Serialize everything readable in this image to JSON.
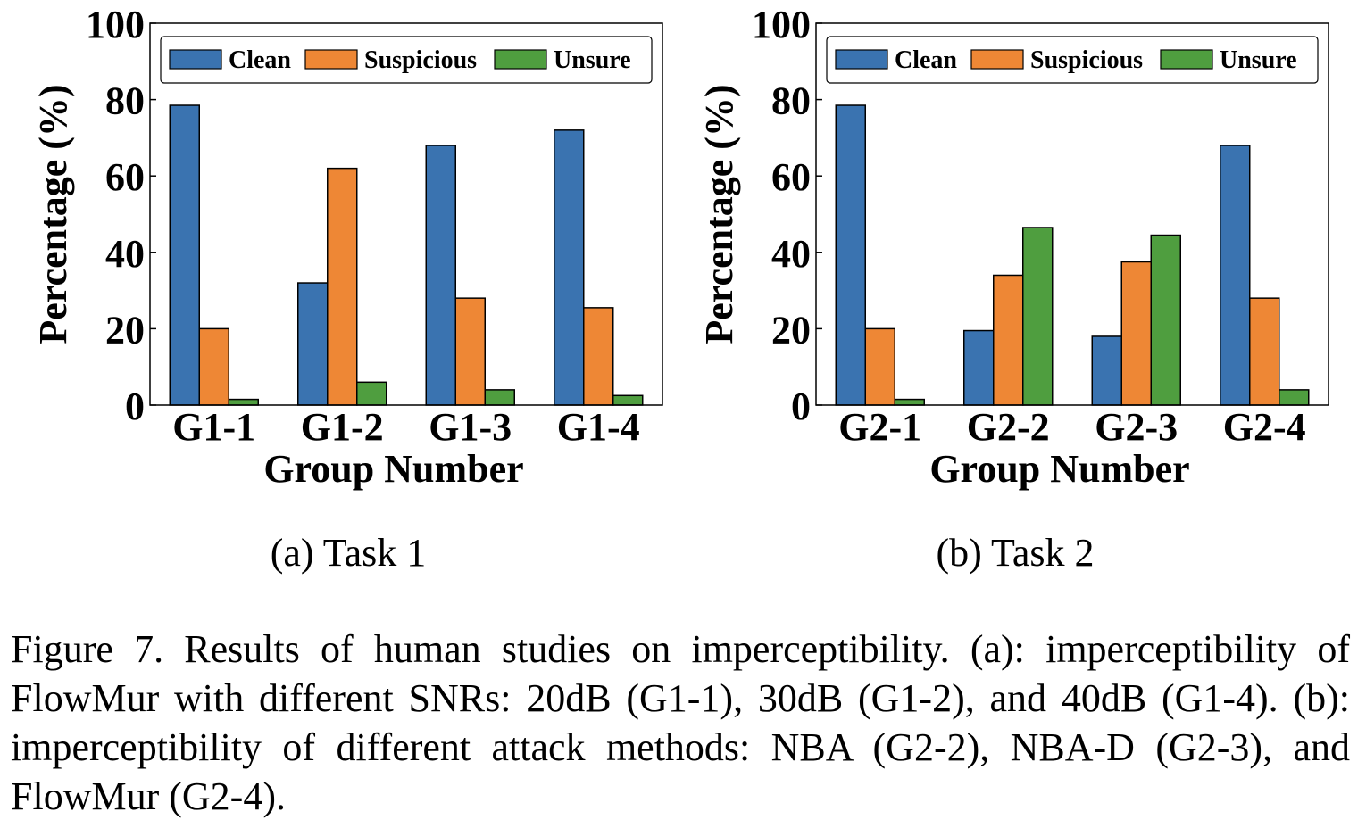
{
  "chart_data": [
    {
      "type": "bar",
      "title": "",
      "xlabel": "Group Number",
      "ylabel": "Percentage (%)",
      "ylim": [
        0,
        100
      ],
      "yticks": [
        "0",
        "20",
        "40",
        "60",
        "80",
        "100"
      ],
      "categories": [
        "G1-1",
        "G1-2",
        "G1-3",
        "G1-4"
      ],
      "legend_position": "top",
      "series": [
        {
          "name": "Clean",
          "color": "#3A73B0",
          "values": [
            78.5,
            32,
            68,
            72
          ]
        },
        {
          "name": "Suspicious",
          "color": "#EE8735",
          "values": [
            20,
            62,
            28,
            25.5
          ]
        },
        {
          "name": "Unsure",
          "color": "#4F9E3F",
          "values": [
            1.5,
            6,
            4,
            2.5
          ]
        }
      ],
      "subcaption": "(a)  Task  1"
    },
    {
      "type": "bar",
      "title": "",
      "xlabel": "Group Number",
      "ylabel": "Percentage (%)",
      "ylim": [
        0,
        100
      ],
      "yticks": [
        "0",
        "20",
        "40",
        "60",
        "80",
        "100"
      ],
      "categories": [
        "G2-1",
        "G2-2",
        "G2-3",
        "G2-4"
      ],
      "legend_position": "top",
      "series": [
        {
          "name": "Clean",
          "color": "#3A73B0",
          "values": [
            78.5,
            19.5,
            18,
            68
          ]
        },
        {
          "name": "Suspicious",
          "color": "#EE8735",
          "values": [
            20,
            34,
            37.5,
            28
          ]
        },
        {
          "name": "Unsure",
          "color": "#4F9E3F",
          "values": [
            1.5,
            46.5,
            44.5,
            4
          ]
        }
      ],
      "subcaption": "(b)  Task  2"
    }
  ],
  "caption": "Figure 7. Results of human studies on imperceptibility. (a): imperceptibility of FlowMur with different SNRs: 20dB (G1-1), 30dB (G1-2), and 40dB (G1-4). (b): imperceptibility of different attack methods: NBA (G2-2), NBA-D (G2-3), and FlowMur (G2-4)."
}
